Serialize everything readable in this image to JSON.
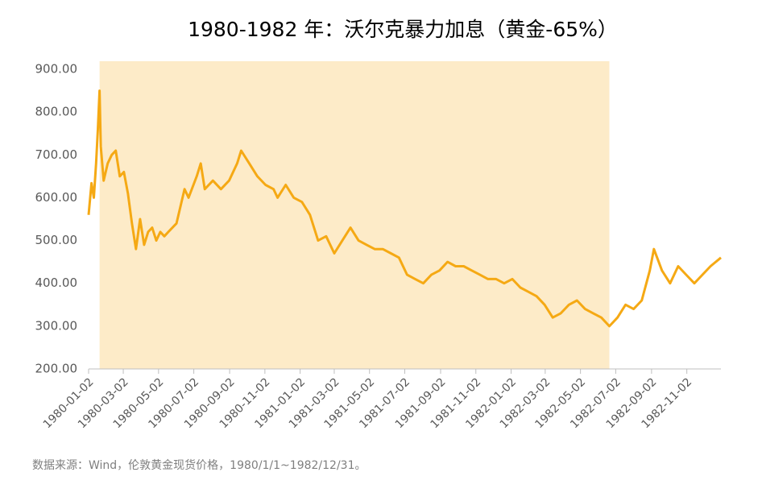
{
  "chart_data": {
    "type": "line",
    "title": "1980-1982 年：沃尔克暴力加息（黄金-65%）",
    "source": "数据来源：Wind，伦敦黄金现货价格，1980/1/1~1982/12/31。",
    "highlight_range": [
      "1980-01-21",
      "1982-06-21"
    ],
    "highlight_color": "#fdebc8",
    "xlim": [
      "1980-01-02",
      "1982-12-31"
    ],
    "xticks": [
      "1980-01-02",
      "1980-03-02",
      "1980-05-02",
      "1980-07-02",
      "1980-09-02",
      "1980-11-02",
      "1981-01-02",
      "1981-03-02",
      "1981-05-02",
      "1981-07-02",
      "1981-09-02",
      "1981-11-02",
      "1982-01-02",
      "1982-03-02",
      "1982-05-02",
      "1982-07-02",
      "1982-09-02",
      "1982-11-02"
    ],
    "ylim": [
      200,
      900
    ],
    "yticks": [
      {
        "value": 200,
        "label": "200.00"
      },
      {
        "value": 300,
        "label": "300.00"
      },
      {
        "value": 400,
        "label": "400.00"
      },
      {
        "value": 500,
        "label": "500.00"
      },
      {
        "value": 600,
        "label": "600.00"
      },
      {
        "value": 700,
        "label": "700.00"
      },
      {
        "value": 800,
        "label": "800.00"
      },
      {
        "value": 900,
        "label": "900.00"
      }
    ],
    "x": [
      "1980-01-02",
      "1980-01-07",
      "1980-01-11",
      "1980-01-15",
      "1980-01-18",
      "1980-01-21",
      "1980-01-23",
      "1980-01-28",
      "1980-02-04",
      "1980-02-11",
      "1980-02-18",
      "1980-02-25",
      "1980-03-03",
      "1980-03-10",
      "1980-03-17",
      "1980-03-24",
      "1980-03-31",
      "1980-04-07",
      "1980-04-14",
      "1980-04-21",
      "1980-04-28",
      "1980-05-05",
      "1980-05-12",
      "1980-05-19",
      "1980-06-02",
      "1980-06-16",
      "1980-06-23",
      "1980-07-07",
      "1980-07-14",
      "1980-07-21",
      "1980-08-04",
      "1980-08-18",
      "1980-09-01",
      "1980-09-15",
      "1980-09-22",
      "1980-10-06",
      "1980-10-20",
      "1980-11-03",
      "1980-11-17",
      "1980-11-24",
      "1980-12-08",
      "1980-12-22",
      "1981-01-05",
      "1981-01-19",
      "1981-02-02",
      "1981-02-16",
      "1981-03-02",
      "1981-03-16",
      "1981-03-30",
      "1981-04-13",
      "1981-04-27",
      "1981-05-11",
      "1981-05-25",
      "1981-06-08",
      "1981-06-22",
      "1981-07-06",
      "1981-07-20",
      "1981-08-03",
      "1981-08-17",
      "1981-08-31",
      "1981-09-14",
      "1981-09-28",
      "1981-10-12",
      "1981-10-26",
      "1981-11-09",
      "1981-11-23",
      "1981-12-07",
      "1981-12-21",
      "1982-01-04",
      "1982-01-18",
      "1982-02-01",
      "1982-02-15",
      "1982-03-01",
      "1982-03-15",
      "1982-03-29",
      "1982-04-12",
      "1982-04-26",
      "1982-05-10",
      "1982-05-24",
      "1982-06-07",
      "1982-06-21",
      "1982-07-05",
      "1982-07-19",
      "1982-08-02",
      "1982-08-16",
      "1982-08-30",
      "1982-09-06",
      "1982-09-20",
      "1982-10-04",
      "1982-10-18",
      "1982-11-01",
      "1982-11-15",
      "1982-11-29",
      "1982-12-13",
      "1982-12-31"
    ],
    "series": [
      {
        "color": "#f5a914",
        "values": [
          560,
          634,
          600,
          680,
          760,
          850,
          720,
          640,
          680,
          700,
          710,
          650,
          660,
          610,
          540,
          480,
          550,
          490,
          520,
          530,
          500,
          520,
          510,
          520,
          540,
          620,
          600,
          650,
          680,
          620,
          640,
          620,
          640,
          680,
          710,
          680,
          650,
          630,
          620,
          600,
          630,
          600,
          590,
          560,
          500,
          510,
          470,
          500,
          530,
          500,
          490,
          480,
          480,
          470,
          460,
          420,
          410,
          400,
          420,
          430,
          450,
          440,
          440,
          430,
          420,
          410,
          410,
          400,
          410,
          390,
          380,
          370,
          350,
          320,
          330,
          350,
          360,
          340,
          330,
          320,
          300,
          320,
          350,
          340,
          360,
          430,
          480,
          430,
          400,
          440,
          420,
          400,
          420,
          440,
          460
        ]
      }
    ]
  }
}
